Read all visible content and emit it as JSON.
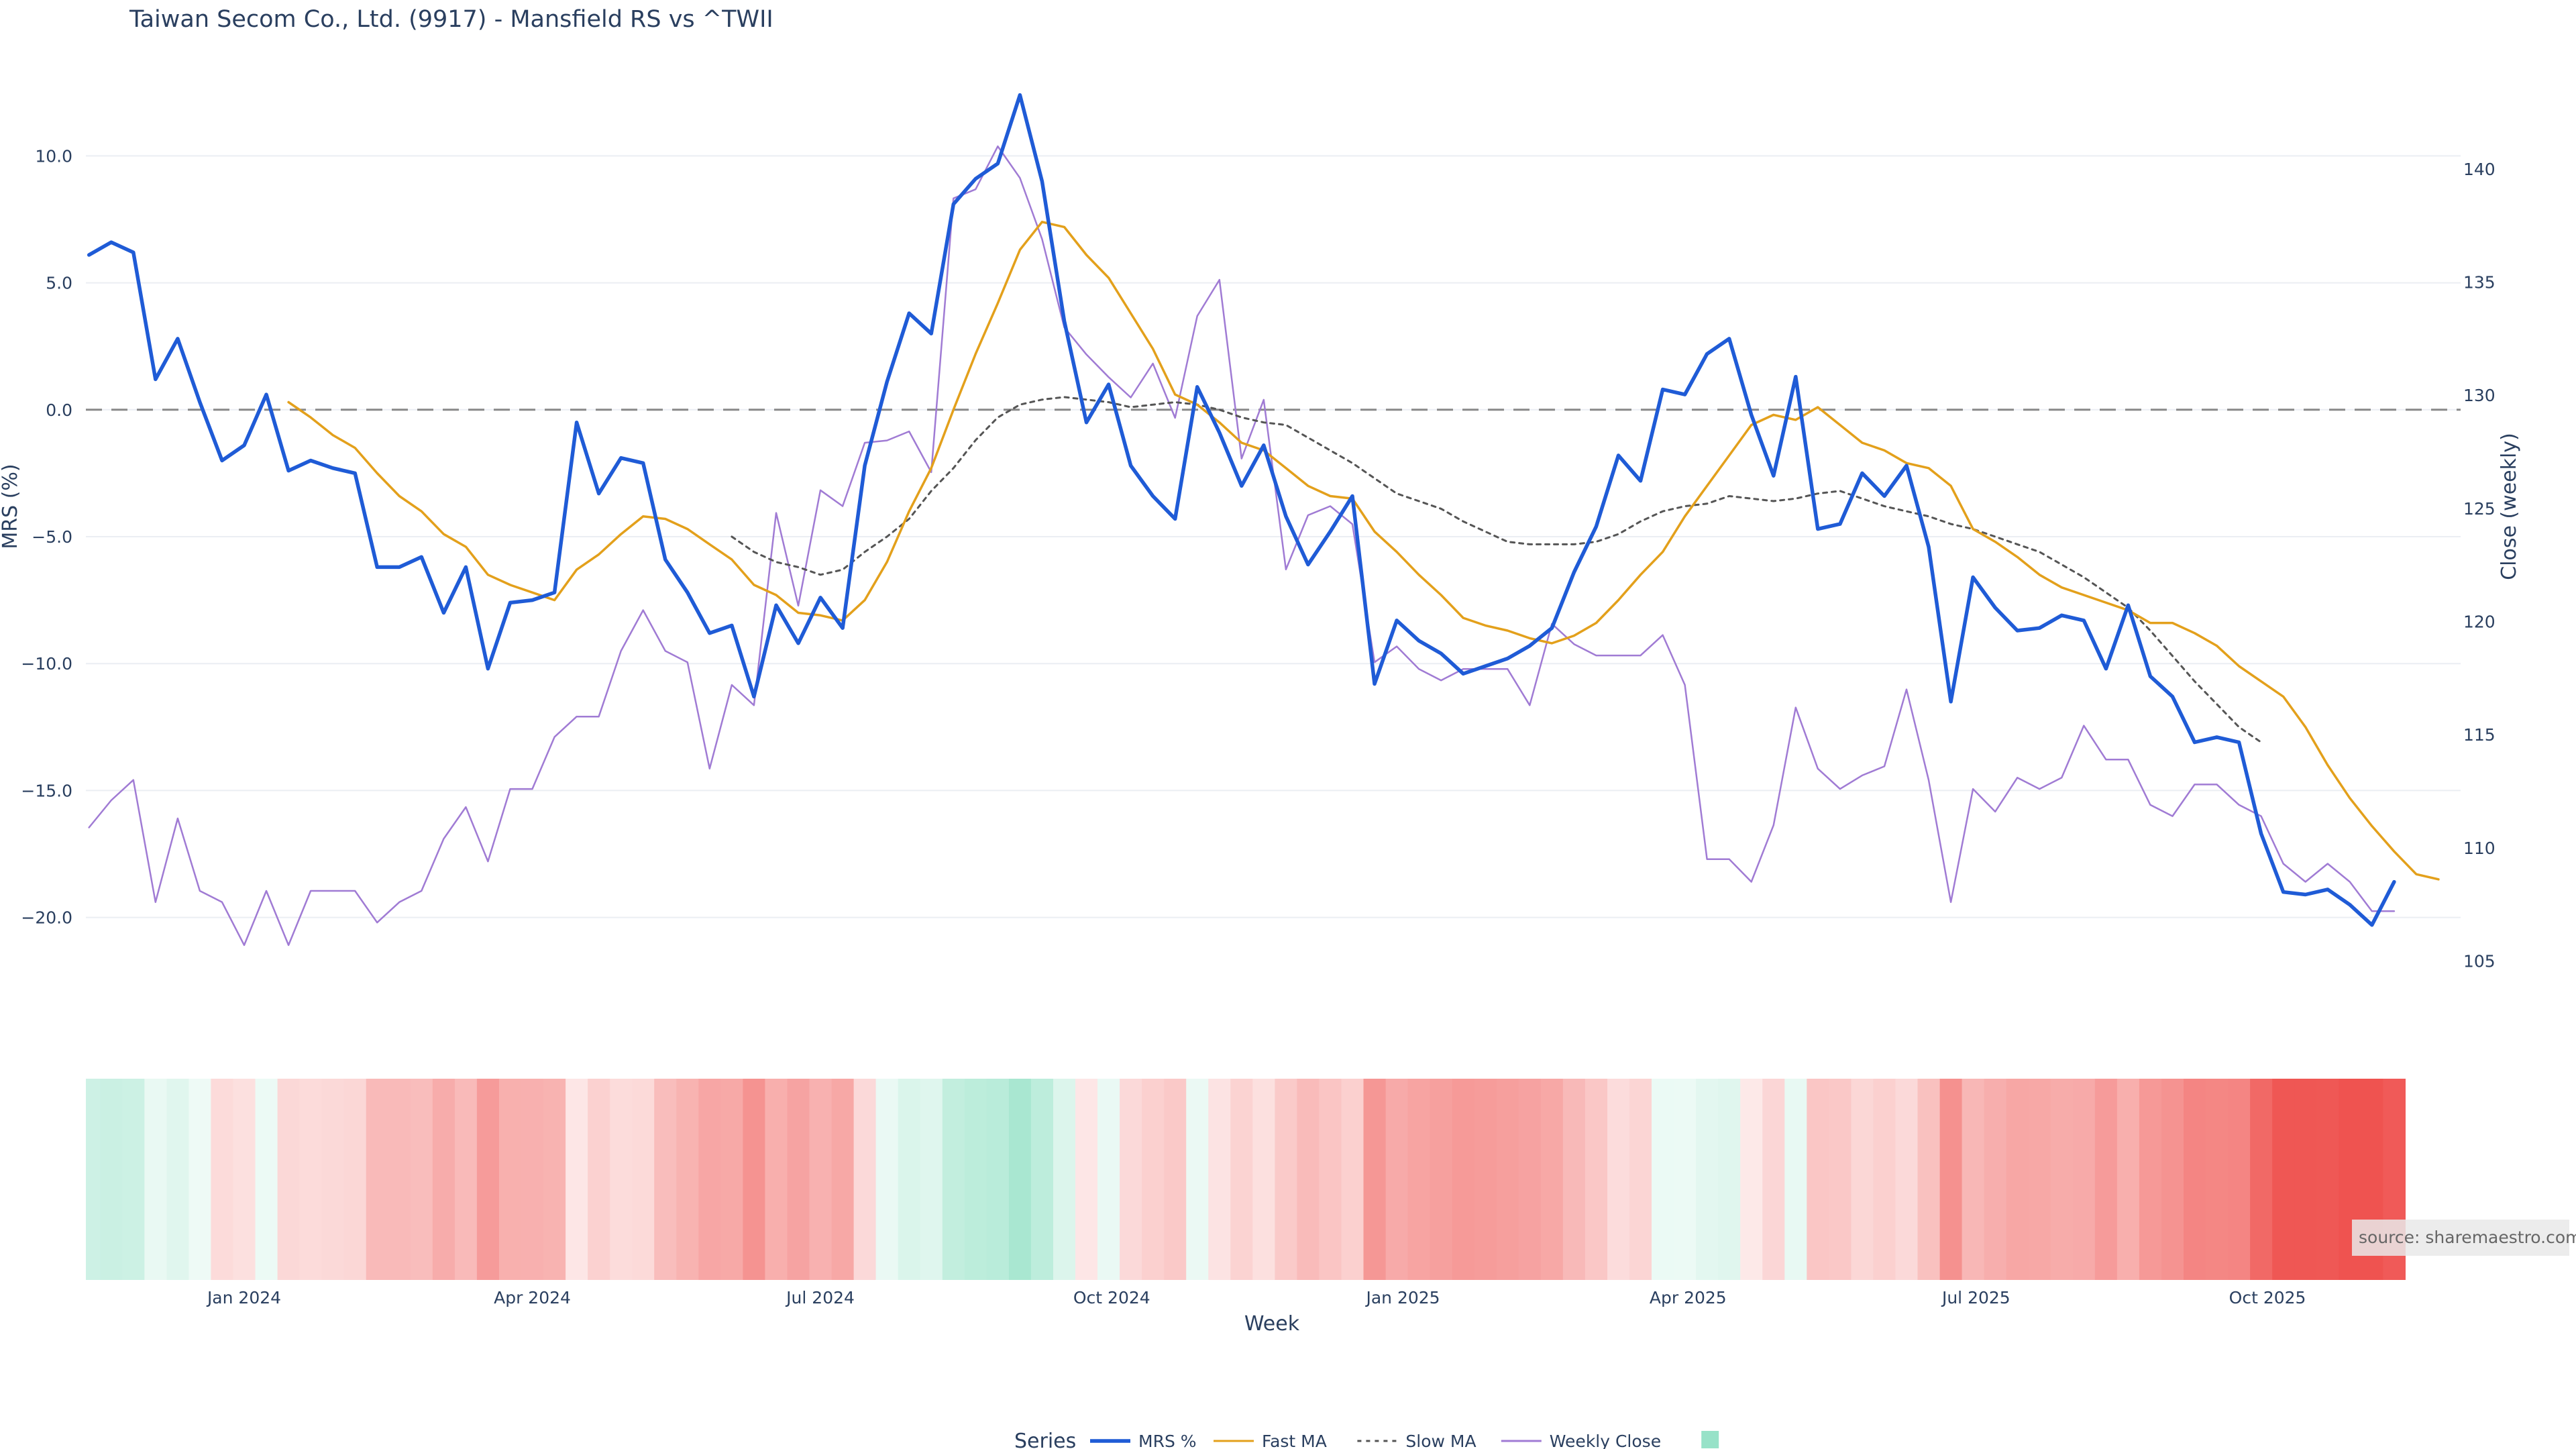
{
  "chart_data": {
    "type": "line",
    "title": "Taiwan Secom Co., Ltd. (9917) - Mansfield RS vs ^TWII",
    "xlabel": "Week",
    "ylabel": "MRS (%)",
    "y2label": "Close (weekly)",
    "ylim": [
      -23.5,
      13.5
    ],
    "y2lim": [
      103.0,
      144.5
    ],
    "yticks": [
      10.0,
      5.0,
      0.0,
      -5.0,
      -10.0,
      -15.0,
      -20.0
    ],
    "ytick_labels": [
      "10.0",
      "5.0",
      "0.0",
      "−5.0",
      "−10.0",
      "−15.0",
      "−20.0"
    ],
    "y2ticks": [
      140,
      135,
      130,
      125,
      120,
      115,
      110,
      105
    ],
    "xrange": [
      "2023-11-12",
      "2025-12-01"
    ],
    "xticks": [
      "2024-01-01",
      "2024-04-01",
      "2024-07-01",
      "2024-10-01",
      "2025-01-01",
      "2025-04-01",
      "2025-07-01",
      "2025-10-01"
    ],
    "xtick_labels": [
      "Jan 2024",
      "Apr 2024",
      "Jul 2024",
      "Oct 2024",
      "Jan 2025",
      "Apr 2025",
      "Jul 2025",
      "Oct 2025"
    ],
    "start_week": "2023-11-13",
    "grid": true,
    "zero_line": 0,
    "legend_title": "Series",
    "legend_position": "bottom-center",
    "source": "source: sharemaestro.com",
    "series": [
      {
        "name": "MRS %",
        "axis": "left",
        "color": "#1f5bd6",
        "values": [
          6.1,
          6.6,
          6.2,
          1.2,
          2.8,
          0.3,
          -2.0,
          -1.4,
          0.6,
          -2.4,
          -2.0,
          -2.3,
          -2.5,
          -6.2,
          -6.2,
          -5.8,
          -8.0,
          -6.2,
          -10.2,
          -7.6,
          -7.5,
          -7.2,
          -0.5,
          -3.3,
          -1.9,
          -2.1,
          -5.9,
          -7.2,
          -8.8,
          -8.5,
          -11.3,
          -7.7,
          -9.2,
          -7.4,
          -8.6,
          -2.2,
          1.1,
          3.8,
          3.0,
          8.1,
          9.1,
          9.7,
          12.4,
          9.0,
          3.5,
          -0.5,
          1.0,
          -2.2,
          -3.4,
          -4.3,
          0.9,
          -0.9,
          -3.0,
          -1.4,
          -4.2,
          -6.1,
          -4.8,
          -3.4,
          -10.8,
          -8.3,
          -9.1,
          -9.6,
          -10.4,
          -10.1,
          -9.8,
          -9.3,
          -8.6,
          -6.4,
          -4.6,
          -1.8,
          -2.8,
          0.8,
          0.6,
          2.2,
          2.8,
          -0.2,
          -2.6,
          1.3,
          -4.7,
          -4.5,
          -2.5,
          -3.4,
          -2.2,
          -5.4,
          -11.5,
          -6.6,
          -7.8,
          -8.7,
          -8.6,
          -8.1,
          -8.3,
          -10.2,
          -7.7,
          -10.5,
          -11.3,
          -13.1,
          -12.9,
          -13.1,
          -16.7,
          -19.0,
          -19.1,
          -18.9,
          -19.5,
          -20.3,
          -18.6
        ]
      },
      {
        "name": "Fast MA",
        "axis": "left",
        "color": "#e3a01b",
        "start_index": 9,
        "values": [
          0.3,
          -0.3,
          -1.0,
          -1.5,
          -2.5,
          -3.4,
          -4.0,
          -4.9,
          -5.4,
          -6.5,
          -6.9,
          -7.2,
          -7.5,
          -6.3,
          -5.7,
          -4.9,
          -4.2,
          -4.3,
          -4.7,
          -5.3,
          -5.9,
          -6.9,
          -7.3,
          -8.0,
          -8.1,
          -8.3,
          -7.5,
          -6.0,
          -4.0,
          -2.3,
          0.0,
          2.2,
          4.2,
          6.3,
          7.4,
          7.2,
          6.1,
          5.2,
          3.8,
          2.4,
          0.6,
          0.2,
          -0.5,
          -1.3,
          -1.6,
          -2.3,
          -3.0,
          -3.4,
          -3.5,
          -4.8,
          -5.6,
          -6.5,
          -7.3,
          -8.2,
          -8.5,
          -8.7,
          -9.0,
          -9.2,
          -8.9,
          -8.4,
          -7.5,
          -6.5,
          -5.6,
          -4.2,
          -3.0,
          -1.8,
          -0.6,
          -0.2,
          -0.4,
          0.1,
          -0.6,
          -1.3,
          -1.6,
          -2.1,
          -2.3,
          -3.0,
          -4.7,
          -5.2,
          -5.8,
          -6.5,
          -7.0,
          -7.3,
          -7.6,
          -7.9,
          -8.4,
          -8.4,
          -8.8,
          -9.3,
          -10.1,
          -10.7,
          -11.3,
          -12.5,
          -14.0,
          -15.3,
          -16.4,
          -17.4,
          -18.3,
          -18.5
        ]
      },
      {
        "name": "Slow MA",
        "axis": "left",
        "color": "#555555",
        "dash": "dot",
        "start_index": 29,
        "values": [
          -5.0,
          -5.6,
          -6.0,
          -6.2,
          -6.5,
          -6.3,
          -5.6,
          -5.0,
          -4.3,
          -3.2,
          -2.3,
          -1.2,
          -0.3,
          0.2,
          0.4,
          0.5,
          0.4,
          0.3,
          0.1,
          0.2,
          0.3,
          0.2,
          0.0,
          -0.3,
          -0.5,
          -0.6,
          -1.1,
          -1.6,
          -2.1,
          -2.7,
          -3.3,
          -3.6,
          -3.9,
          -4.4,
          -4.8,
          -5.2,
          -5.3,
          -5.3,
          -5.3,
          -5.2,
          -4.9,
          -4.4,
          -4.0,
          -3.8,
          -3.7,
          -3.4,
          -3.5,
          -3.6,
          -3.5,
          -3.3,
          -3.2,
          -3.5,
          -3.8,
          -4.0,
          -4.2,
          -4.5,
          -4.7,
          -5.0,
          -5.3,
          -5.6,
          -6.1,
          -6.6,
          -7.2,
          -7.8,
          -8.7,
          -9.7,
          -10.7,
          -11.6,
          -12.5,
          -13.1
        ]
      },
      {
        "name": "Weekly Close",
        "axis": "right",
        "color": "#a07bd4",
        "values": [
          110.9,
          112.1,
          113.0,
          107.6,
          111.3,
          108.1,
          107.6,
          105.7,
          108.1,
          105.7,
          108.1,
          108.1,
          108.1,
          106.7,
          107.6,
          108.1,
          110.4,
          111.8,
          109.4,
          112.6,
          112.6,
          114.9,
          115.8,
          115.8,
          118.7,
          120.5,
          118.7,
          118.2,
          113.5,
          117.2,
          116.3,
          124.8,
          120.7,
          125.8,
          125.1,
          127.9,
          128.0,
          128.4,
          126.6,
          138.7,
          139.1,
          141.0,
          139.6,
          136.9,
          133.0,
          131.8,
          130.8,
          129.9,
          131.4,
          129.0,
          133.5,
          135.1,
          127.2,
          129.8,
          122.3,
          124.7,
          125.1,
          124.3,
          118.2,
          118.9,
          117.9,
          117.4,
          117.9,
          117.9,
          117.9,
          116.3,
          119.9,
          119.0,
          118.5,
          118.5,
          118.5,
          119.4,
          117.2,
          109.5,
          109.5,
          108.5,
          111.0,
          116.2,
          113.5,
          112.6,
          113.2,
          113.6,
          117.0,
          113.0,
          107.6,
          112.6,
          111.6,
          113.1,
          112.6,
          113.1,
          115.4,
          113.9,
          113.9,
          111.9,
          111.4,
          112.8,
          112.8,
          111.9,
          111.4,
          109.3,
          108.5,
          109.3,
          108.5,
          107.2,
          107.2
        ]
      }
    ],
    "heatmap_strip": {
      "description_values": "per-week MRS % (same values as MRS % series)",
      "positive_color": "#6ad6b0",
      "negative_color": "#ef5350",
      "gap_between": [
        "2025-01-05",
        "2025-01-12"
      ]
    }
  }
}
